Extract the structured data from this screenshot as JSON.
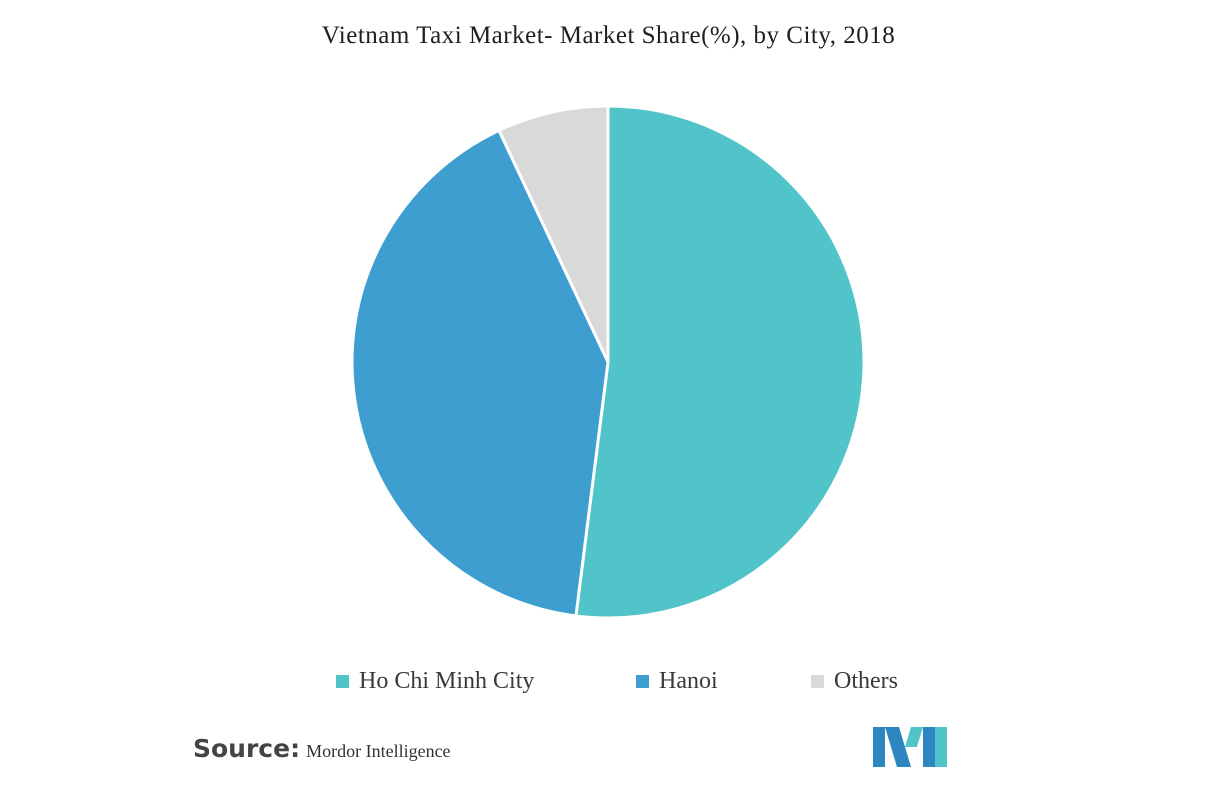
{
  "chart_data": {
    "type": "pie",
    "title": "Vietnam Taxi Market- Market Share(%), by City, 2018",
    "slices": [
      {
        "label": "Ho Chi Minh City",
        "value": 52,
        "color": "#51c4c9"
      },
      {
        "label": "Hanoi",
        "value": 41,
        "color": "#3d9ecf"
      },
      {
        "label": "Others",
        "value": 7,
        "color": "#d9d9d9"
      }
    ],
    "legend_position": "bottom",
    "start_angle_deg": 0,
    "direction": "clockwise"
  },
  "source": {
    "label": "Source:",
    "value": "Mordor Intelligence"
  },
  "logo": {
    "icon": "mordor-intelligence-logo-icon",
    "colors": [
      "#2e86c1",
      "#51c4c9"
    ]
  }
}
